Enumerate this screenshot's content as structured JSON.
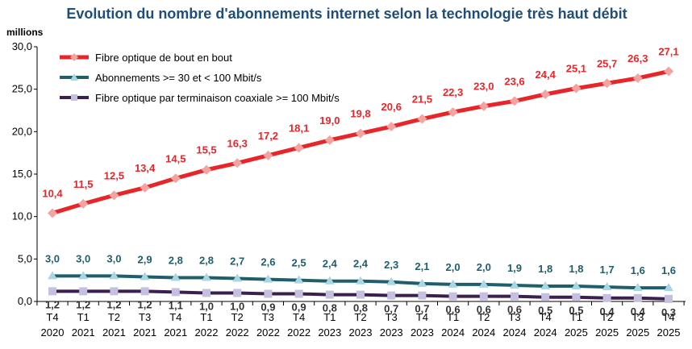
{
  "chart_data": {
    "type": "line",
    "title": "Evolution du nombre d'abonnements internet selon la technologie très haut débit",
    "ylabel": "millions",
    "xlabel": "",
    "ylim": [
      0,
      30
    ],
    "yticks": [
      "0,0",
      "5,0",
      "10,0",
      "15,0",
      "20,0",
      "25,0",
      "30,0"
    ],
    "grid": false,
    "legend_position": "top-left",
    "categories": [
      {
        "q": "T4",
        "y": "2020"
      },
      {
        "q": "T1",
        "y": "2021"
      },
      {
        "q": "T2",
        "y": "2021"
      },
      {
        "q": "T3",
        "y": "2021"
      },
      {
        "q": "T4",
        "y": "2021"
      },
      {
        "q": "T1",
        "y": "2022"
      },
      {
        "q": "T2",
        "y": "2022"
      },
      {
        "q": "T3",
        "y": "2022"
      },
      {
        "q": "T4",
        "y": "2022"
      },
      {
        "q": "T1",
        "y": "2023"
      },
      {
        "q": "T2",
        "y": "2023"
      },
      {
        "q": "T3",
        "y": "2023"
      },
      {
        "q": "T4",
        "y": "2023"
      },
      {
        "q": "T1",
        "y": "2024"
      },
      {
        "q": "T2",
        "y": "2024"
      },
      {
        "q": "T3",
        "y": "2024"
      },
      {
        "q": "T4",
        "y": "2024"
      },
      {
        "q": "T1",
        "y": "2025"
      },
      {
        "q": "T2",
        "y": "2025"
      },
      {
        "q": "T3",
        "y": "2025"
      },
      {
        "q": "T4",
        "y": "2025"
      }
    ],
    "series": [
      {
        "name": "Fibre optique de bout en bout",
        "color": "#e8262a",
        "marker_color": "#f4a3a0",
        "marker": "diamond",
        "values": [
          10.4,
          11.5,
          12.5,
          13.4,
          14.5,
          15.5,
          16.3,
          17.2,
          18.1,
          19.0,
          19.8,
          20.6,
          21.5,
          22.3,
          23.0,
          23.6,
          24.4,
          25.1,
          25.7,
          26.3,
          27.1
        ],
        "labels": [
          "10,4",
          "11,5",
          "12,5",
          "13,4",
          "14,5",
          "15,5",
          "16,3",
          "17,2",
          "18,1",
          "19,0",
          "19,8",
          "20,6",
          "21,5",
          "22,3",
          "23,0",
          "23,6",
          "24,4",
          "25,1",
          "25,7",
          "26,3",
          "27,1"
        ]
      },
      {
        "name": "Abonnements >= 30 et < 100 Mbit/s",
        "color": "#1f5e6b",
        "marker_color": "#a9d6e3",
        "marker": "triangle",
        "values": [
          3.0,
          3.0,
          3.0,
          2.9,
          2.8,
          2.8,
          2.7,
          2.6,
          2.5,
          2.4,
          2.4,
          2.3,
          2.1,
          2.0,
          2.0,
          1.9,
          1.8,
          1.8,
          1.7,
          1.6,
          1.6
        ],
        "labels": [
          "3,0",
          "3,0",
          "3,0",
          "2,9",
          "2,8",
          "2,8",
          "2,7",
          "2,6",
          "2,5",
          "2,4",
          "2,4",
          "2,3",
          "2,1",
          "2,0",
          "2,0",
          "1,9",
          "1,8",
          "1,8",
          "1,7",
          "1,6",
          "1,6"
        ]
      },
      {
        "name": "Fibre optique par terminaison coaxiale >= 100 Mbit/s",
        "color": "#3b1f4f",
        "marker_color": "#c5bfe0",
        "marker": "square",
        "values": [
          1.2,
          1.2,
          1.2,
          1.2,
          1.1,
          1.0,
          1.0,
          0.9,
          0.9,
          0.8,
          0.8,
          0.7,
          0.7,
          0.6,
          0.6,
          0.6,
          0.5,
          0.5,
          0.4,
          0.4,
          0.3
        ],
        "labels": [
          "1,2",
          "1,2",
          "1,2",
          "1,2",
          "1,1",
          "1,0",
          "1,0",
          "0,9",
          "0,9",
          "0,8",
          "0,8",
          "0,7",
          "0,7",
          "0,6",
          "0,6",
          "0,6",
          "0,5",
          "0,5",
          "0,4",
          "0,4",
          "0,3"
        ]
      }
    ]
  }
}
